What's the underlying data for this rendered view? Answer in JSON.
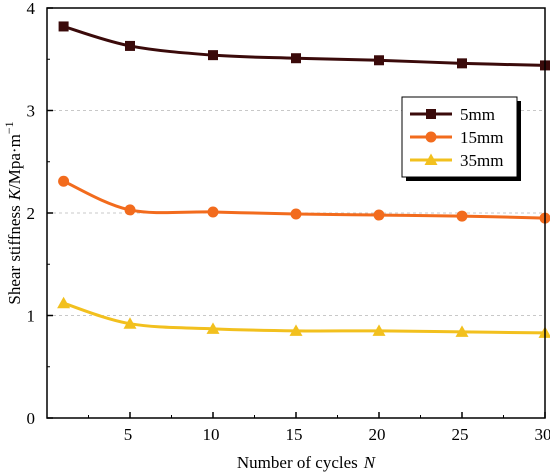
{
  "chart_data": {
    "type": "line",
    "xlabel": "Number of cycles",
    "xlabel_var": "N",
    "ylabel": "Shear stiffness",
    "ylabel_var": "K",
    "ylabel_unit": "/Mpa·m",
    "ylabel_unit_sup": "−1",
    "xlim": [
      0,
      30
    ],
    "ylim": [
      0,
      4
    ],
    "xticks": [
      5,
      10,
      15,
      20,
      25,
      30
    ],
    "yticks": [
      0,
      1,
      2,
      3,
      4
    ],
    "grid": "horizontal dashed",
    "legend_position": "right",
    "series": [
      {
        "name": "5mm",
        "color": "#3a0a0a",
        "marker": "square",
        "x": [
          1,
          5,
          10,
          15,
          20,
          25,
          30
        ],
        "y": [
          3.82,
          3.63,
          3.54,
          3.51,
          3.49,
          3.46,
          3.44
        ]
      },
      {
        "name": "15mm",
        "color": "#f26b1d",
        "marker": "circle",
        "x": [
          1,
          5,
          10,
          15,
          20,
          25,
          30
        ],
        "y": [
          2.31,
          2.03,
          2.01,
          1.99,
          1.98,
          1.97,
          1.95
        ]
      },
      {
        "name": "35mm",
        "color": "#f2c01e",
        "marker": "triangle",
        "x": [
          1,
          5,
          10,
          15,
          20,
          25,
          30
        ],
        "y": [
          1.12,
          0.92,
          0.87,
          0.85,
          0.85,
          0.84,
          0.83
        ]
      }
    ]
  }
}
